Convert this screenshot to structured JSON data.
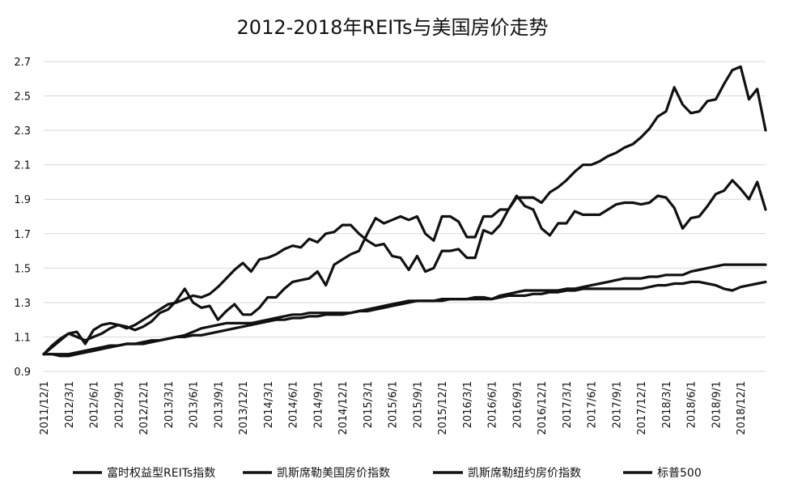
{
  "chart_data": {
    "type": "line",
    "title": "2012-2018年REITs与美国房价走势",
    "xlabel": "",
    "ylabel": "",
    "ylim": [
      0.9,
      2.7
    ],
    "yticks": [
      "0.9",
      "1.1",
      "1.3",
      "1.5",
      "1.7",
      "1.9",
      "2.1",
      "2.3",
      "2.5",
      "2.7"
    ],
    "grid": true,
    "legend_position": "bottom",
    "x_tick_labels": [
      "2011/12/1",
      "2012/3/1",
      "2012/6/1",
      "2012/9/1",
      "2012/12/1",
      "2013/3/1",
      "2013/6/1",
      "2013/9/1",
      "2013/12/1",
      "2014/3/1",
      "2014/6/1",
      "2014/9/1",
      "2014/12/1",
      "2015/3/1",
      "2015/6/1",
      "2015/9/1",
      "2015/12/1",
      "2016/3/1",
      "2016/6/1",
      "2016/9/1",
      "2016/12/1",
      "2017/3/1",
      "2017/6/1",
      "2017/9/1",
      "2017/12/1",
      "2018/3/1",
      "2018/6/1",
      "2018/9/1",
      "2018/12/1"
    ],
    "x_start": "2011/12/1",
    "x_step_months": 1,
    "series": [
      {
        "name": "富时权益型REITs指数",
        "color": "#111111",
        "values": [
          1.0,
          1.05,
          1.09,
          1.12,
          1.13,
          1.06,
          1.14,
          1.17,
          1.18,
          1.17,
          1.16,
          1.14,
          1.16,
          1.19,
          1.24,
          1.26,
          1.31,
          1.38,
          1.3,
          1.27,
          1.28,
          1.2,
          1.25,
          1.29,
          1.23,
          1.23,
          1.27,
          1.33,
          1.33,
          1.38,
          1.42,
          1.43,
          1.44,
          1.48,
          1.4,
          1.52,
          1.55,
          1.58,
          1.6,
          1.7,
          1.79,
          1.76,
          1.78,
          1.8,
          1.78,
          1.8,
          1.7,
          1.66,
          1.8,
          1.8,
          1.77,
          1.68,
          1.68,
          1.8,
          1.8,
          1.84,
          1.84,
          1.91,
          1.91,
          1.91,
          1.88,
          1.94,
          1.97,
          2.01,
          2.06,
          2.1,
          2.1,
          2.12,
          2.15,
          2.17,
          2.2,
          2.22,
          2.26,
          2.31,
          2.38,
          2.41,
          2.55,
          2.45,
          2.4,
          2.41,
          2.47,
          2.48,
          2.57,
          2.65,
          2.67,
          2.48,
          2.54,
          2.3
        ]
      },
      {
        "name": "凯斯席勒美国房价指数",
        "color": "#111111",
        "values": [
          1.0,
          1.0,
          1.0,
          1.0,
          1.01,
          1.02,
          1.03,
          1.04,
          1.05,
          1.05,
          1.06,
          1.06,
          1.06,
          1.07,
          1.08,
          1.09,
          1.1,
          1.11,
          1.13,
          1.15,
          1.16,
          1.17,
          1.18,
          1.18,
          1.18,
          1.18,
          1.19,
          1.2,
          1.21,
          1.22,
          1.23,
          1.23,
          1.24,
          1.24,
          1.24,
          1.24,
          1.24,
          1.24,
          1.25,
          1.26,
          1.27,
          1.28,
          1.29,
          1.3,
          1.31,
          1.31,
          1.31,
          1.31,
          1.31,
          1.32,
          1.32,
          1.32,
          1.32,
          1.32,
          1.32,
          1.34,
          1.35,
          1.36,
          1.37,
          1.37,
          1.37,
          1.37,
          1.37,
          1.38,
          1.38,
          1.39,
          1.4,
          1.41,
          1.42,
          1.43,
          1.44,
          1.44,
          1.44,
          1.45,
          1.45,
          1.46,
          1.46,
          1.46,
          1.48,
          1.49,
          1.5,
          1.51,
          1.52,
          1.52,
          1.52,
          1.52,
          1.52,
          1.52
        ]
      },
      {
        "name": "凯斯席勒纽约房价指数",
        "color": "#111111",
        "values": [
          1.0,
          1.0,
          0.99,
          0.99,
          1.0,
          1.01,
          1.02,
          1.03,
          1.04,
          1.05,
          1.06,
          1.06,
          1.07,
          1.08,
          1.08,
          1.09,
          1.1,
          1.1,
          1.11,
          1.11,
          1.12,
          1.13,
          1.14,
          1.15,
          1.16,
          1.17,
          1.18,
          1.19,
          1.2,
          1.2,
          1.21,
          1.21,
          1.22,
          1.22,
          1.23,
          1.23,
          1.23,
          1.24,
          1.25,
          1.25,
          1.26,
          1.27,
          1.28,
          1.29,
          1.3,
          1.31,
          1.31,
          1.31,
          1.32,
          1.32,
          1.32,
          1.32,
          1.33,
          1.33,
          1.32,
          1.33,
          1.34,
          1.34,
          1.34,
          1.35,
          1.35,
          1.36,
          1.36,
          1.37,
          1.37,
          1.38,
          1.38,
          1.38,
          1.38,
          1.38,
          1.38,
          1.38,
          1.38,
          1.39,
          1.4,
          1.4,
          1.41,
          1.41,
          1.42,
          1.42,
          1.41,
          1.4,
          1.38,
          1.37,
          1.39,
          1.4,
          1.41,
          1.42
        ]
      },
      {
        "name": "标普500",
        "color": "#111111",
        "values": [
          1.0,
          1.04,
          1.08,
          1.12,
          1.1,
          1.08,
          1.1,
          1.12,
          1.15,
          1.17,
          1.15,
          1.17,
          1.2,
          1.23,
          1.26,
          1.29,
          1.3,
          1.32,
          1.34,
          1.33,
          1.35,
          1.39,
          1.44,
          1.49,
          1.53,
          1.48,
          1.55,
          1.56,
          1.58,
          1.61,
          1.63,
          1.62,
          1.67,
          1.65,
          1.7,
          1.71,
          1.75,
          1.75,
          1.7,
          1.66,
          1.63,
          1.64,
          1.57,
          1.56,
          1.49,
          1.57,
          1.48,
          1.5,
          1.6,
          1.6,
          1.61,
          1.56,
          1.56,
          1.72,
          1.7,
          1.75,
          1.84,
          1.92,
          1.86,
          1.84,
          1.73,
          1.69,
          1.76,
          1.76,
          1.83,
          1.81,
          1.81,
          1.81,
          1.84,
          1.87,
          1.88,
          1.88,
          1.87,
          1.88,
          1.92,
          1.91,
          1.85,
          1.73,
          1.79,
          1.8,
          1.86,
          1.93,
          1.95,
          2.01,
          1.96,
          1.9,
          2.0,
          1.84
        ]
      }
    ]
  }
}
